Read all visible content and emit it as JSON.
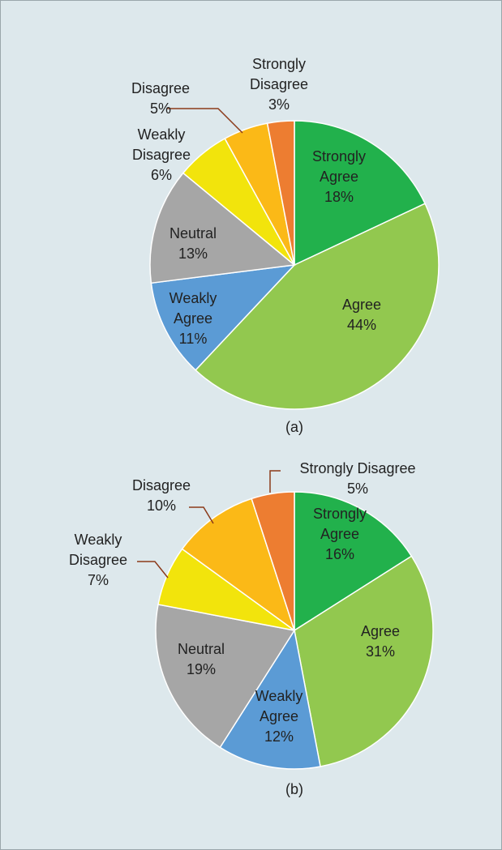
{
  "chart_data": [
    {
      "type": "pie",
      "caption": "(a)",
      "categories": [
        "Strongly Agree",
        "Agree",
        "Weakly Agree",
        "Neutral",
        "Weakly Disagree",
        "Disagree",
        "Strongly Disagree"
      ],
      "values": [
        18,
        44,
        11,
        13,
        6,
        5,
        3
      ],
      "value_labels": [
        "18%",
        "44%",
        "11%",
        "13%",
        "6%",
        "5%",
        "3%"
      ],
      "colors": [
        "#22b14c",
        "#92c84f",
        "#5b9bd5",
        "#a6a6a6",
        "#f2e40c",
        "#fbb917",
        "#ed7d31"
      ]
    },
    {
      "type": "pie",
      "caption": "(b)",
      "categories": [
        "Strongly Agree",
        "Agree",
        "Weakly Agree",
        "Neutral",
        "Weakly Disagree",
        "Disagree",
        "Strongly Disagree"
      ],
      "values": [
        16,
        31,
        12,
        19,
        7,
        10,
        5
      ],
      "value_labels": [
        "16%",
        "31%",
        "12%",
        "19%",
        "7%",
        "10%",
        "5%"
      ],
      "colors": [
        "#22b14c",
        "#92c84f",
        "#5b9bd5",
        "#a6a6a6",
        "#f2e40c",
        "#fbb917",
        "#ed7d31"
      ]
    }
  ]
}
